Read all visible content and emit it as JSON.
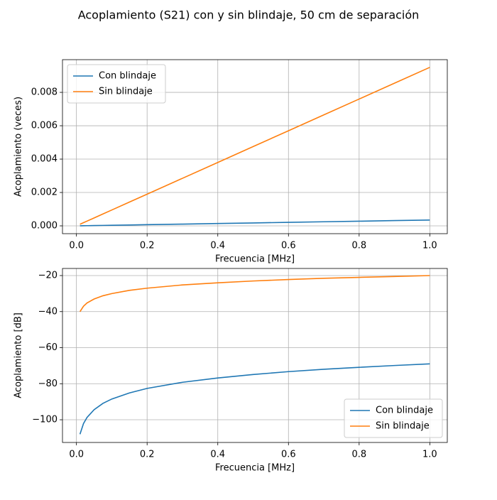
{
  "title": "Acoplamiento (S21) con y sin blindaje, 50 cm de separación",
  "chart_data": [
    {
      "type": "line",
      "x_label": "Frecuencia [MHz]",
      "y_label": "Acoplamiento (veces)",
      "x": [
        0.01,
        0.02,
        0.03,
        0.05,
        0.075,
        0.1,
        0.15,
        0.2,
        0.3,
        0.4,
        0.5,
        0.6,
        0.7,
        0.8,
        0.9,
        1.0
      ],
      "series": [
        {
          "name": "Con blindaje",
          "color": "#1f77b4",
          "values": [
            3.5e-06,
            7e-06,
            1.05e-05,
            1.75e-05,
            2.63e-05,
            3.5e-05,
            5.25e-05,
            7e-05,
            0.000105,
            0.00014,
            0.000175,
            0.00021,
            0.000245,
            0.00028,
            0.000315,
            0.00035
          ]
        },
        {
          "name": "Sin blindaje",
          "color": "#ff7f0e",
          "values": [
            9.5e-05,
            0.00019,
            0.000285,
            0.000475,
            0.000713,
            0.00095,
            0.001425,
            0.0019,
            0.00285,
            0.0038,
            0.00475,
            0.0057,
            0.00665,
            0.0076,
            0.00855,
            0.0095
          ]
        }
      ],
      "xlim": [
        -0.0395,
        1.0495
      ],
      "ylim": [
        -0.000468,
        0.00996
      ],
      "xticks": [
        {
          "value": 0,
          "label": "0.0"
        },
        0.2,
        0.4,
        0.6,
        0.8,
        {
          "value": 1,
          "label": "1.0"
        }
      ],
      "yticks": [
        {
          "value": 0,
          "label": "0.000"
        },
        {
          "value": 0.002,
          "label": "0.002"
        },
        {
          "value": 0.004,
          "label": "0.004"
        },
        {
          "value": 0.006,
          "label": "0.006"
        },
        {
          "value": 0.008,
          "label": "0.008"
        }
      ],
      "grid": true,
      "legend": "upper left"
    },
    {
      "type": "line",
      "x_label": "Frecuencia [MHz]",
      "y_label": "Acoplamiento [dB]",
      "x": [
        0.01,
        0.02,
        0.03,
        0.05,
        0.075,
        0.1,
        0.15,
        0.2,
        0.3,
        0.4,
        0.5,
        0.6,
        0.7,
        0.8,
        0.9,
        1.0
      ],
      "series": [
        {
          "name": "Con blindaje",
          "color": "#1f77b4",
          "values": [
            -108,
            -102.1,
            -98.7,
            -94.4,
            -90.9,
            -88.5,
            -85.1,
            -82.6,
            -79.2,
            -76.8,
            -74.9,
            -73.3,
            -72.0,
            -70.9,
            -69.9,
            -69
          ]
        },
        {
          "name": "Sin blindaje",
          "color": "#ff7f0e",
          "values": [
            -40,
            -37,
            -35.2,
            -33,
            -31.2,
            -30,
            -28.2,
            -27,
            -25.2,
            -24,
            -23,
            -22.2,
            -21.5,
            -21,
            -20.5,
            -20
          ]
        }
      ],
      "xlim": [
        -0.0395,
        1.0495
      ],
      "ylim": [
        -112.6,
        -16.06
      ],
      "xticks": [
        {
          "value": 0,
          "label": "0.0"
        },
        0.2,
        0.4,
        0.6,
        0.8,
        {
          "value": 1,
          "label": "1.0"
        }
      ],
      "yticks": [
        {
          "value": -100,
          "label": "−100"
        },
        {
          "value": -80,
          "label": "−80"
        },
        {
          "value": -60,
          "label": "−60"
        },
        {
          "value": -40,
          "label": "−40"
        },
        {
          "value": -20,
          "label": "−20"
        }
      ],
      "grid": true,
      "legend": "lower right"
    }
  ]
}
